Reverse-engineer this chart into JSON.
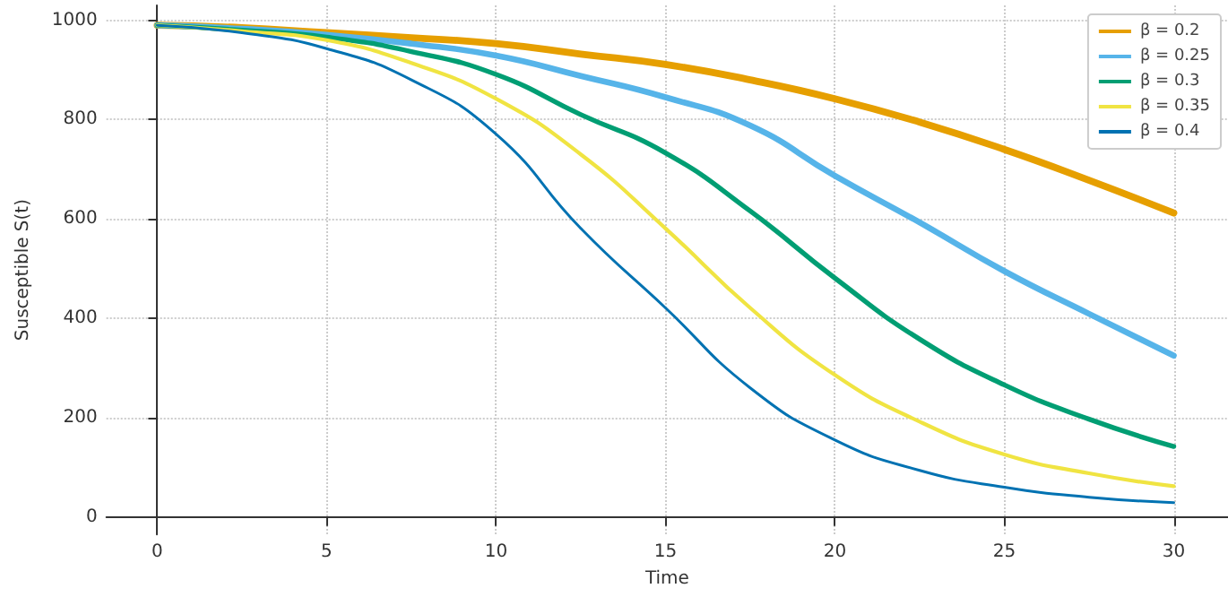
{
  "chart_data": {
    "type": "line",
    "xlabel": "Time",
    "ylabel": "Susceptible S(t)",
    "x": [
      0,
      2.5,
      5,
      7.5,
      10,
      12.5,
      15,
      17.5,
      20,
      22.5,
      25,
      27.5,
      30
    ],
    "series": [
      {
        "name": "β = 0.2",
        "color": "#e69f00",
        "values": [
          990,
          985,
          975,
          965,
          953,
          932,
          911,
          880,
          842,
          795,
          740,
          678,
          612
        ]
      },
      {
        "name": "β = 0.25",
        "color": "#56b4e9",
        "values": [
          990,
          983,
          971,
          953,
          929,
          888,
          845,
          788,
          687,
          593,
          495,
          409,
          325
        ]
      },
      {
        "name": "β = 0.3",
        "color": "#009e73",
        "values": [
          990,
          980,
          966,
          937,
          891,
          810,
          733,
          616,
          481,
          358,
          266,
          197,
          142
        ]
      },
      {
        "name": "β = 0.35",
        "color": "#f0e442",
        "values": [
          990,
          978,
          960,
          914,
          842,
          730,
          581,
          421,
          286,
          192,
          126,
          88,
          62
        ]
      },
      {
        "name": "β = 0.4",
        "color": "#0072b2",
        "values": [
          990,
          975,
          943,
          880,
          771,
          581,
          421,
          260,
          155,
          94,
          60,
          40,
          29
        ]
      }
    ],
    "xlim": [
      -1.5,
      31.6
    ],
    "ylim": [
      -35,
      1030
    ],
    "xticks": [
      0,
      5,
      10,
      15,
      20,
      25,
      30
    ],
    "yticks": [
      0,
      200,
      400,
      600,
      800,
      1000
    ],
    "grid": true,
    "legend": "top right",
    "marker": "none",
    "line_style": "solid"
  }
}
